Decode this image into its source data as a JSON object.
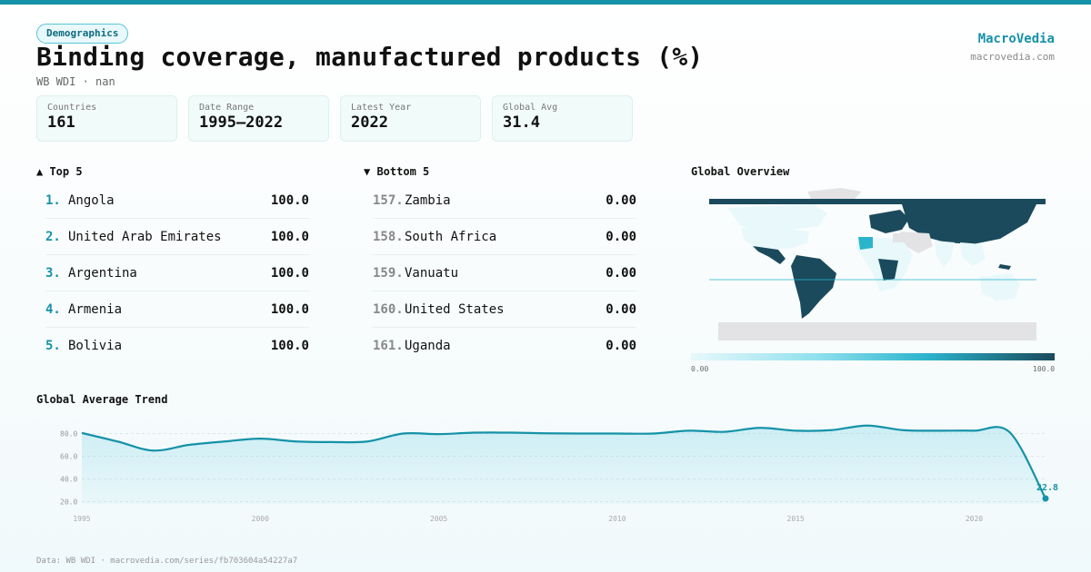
{
  "category_tag": "Demographics",
  "title": "Binding coverage, manufactured products (%)",
  "subtitle": "WB WDI · nan",
  "brand": {
    "name": "MacroVedia",
    "url": "macrovedia.com"
  },
  "stats": [
    {
      "label": "Countries",
      "value": "161"
    },
    {
      "label": "Date Range",
      "value": "1995–2022"
    },
    {
      "label": "Latest Year",
      "value": "2022"
    },
    {
      "label": "Global Avg",
      "value": "31.4"
    }
  ],
  "top5": {
    "title": "▲ Top 5",
    "rows": [
      {
        "rank": "1.",
        "name": "Angola",
        "value": "100.0"
      },
      {
        "rank": "2.",
        "name": "United Arab Emirates",
        "value": "100.0"
      },
      {
        "rank": "3.",
        "name": "Argentina",
        "value": "100.0"
      },
      {
        "rank": "4.",
        "name": "Armenia",
        "value": "100.0"
      },
      {
        "rank": "5.",
        "name": "Bolivia",
        "value": "100.0"
      }
    ]
  },
  "bottom5": {
    "title": "▼ Bottom 5",
    "rows": [
      {
        "rank": "157.",
        "name": "Zambia",
        "value": "0.00"
      },
      {
        "rank": "158.",
        "name": "South Africa",
        "value": "0.00"
      },
      {
        "rank": "159.",
        "name": "Vanuatu",
        "value": "0.00"
      },
      {
        "rank": "160.",
        "name": "United States",
        "value": "0.00"
      },
      {
        "rank": "161.",
        "name": "Uganda",
        "value": "0.00"
      }
    ]
  },
  "map": {
    "title": "Global Overview",
    "legend_min": "0.00",
    "legend_max": "100.0",
    "colors": {
      "high": "#1a4a5c",
      "mid": "#2ab4cc",
      "low": "#e8f8fb",
      "nodata": "#e3e3e6"
    }
  },
  "trend": {
    "title": "Global Average Trend",
    "end_label": "22.8"
  },
  "footer": "Data: WB WDI · macrovedia.com/series/fb703604a54227a7",
  "chart_data": {
    "type": "area",
    "title": "Global Average Trend",
    "x": [
      1995,
      1996,
      1997,
      1998,
      1999,
      2000,
      2001,
      2002,
      2003,
      2004,
      2005,
      2006,
      2007,
      2008,
      2009,
      2010,
      2011,
      2012,
      2013,
      2014,
      2015,
      2016,
      2017,
      2018,
      2019,
      2020,
      2021,
      2022
    ],
    "series": [
      {
        "values": [
          80.5,
          73.0,
          65.0,
          70.0,
          73.0,
          75.5,
          73.0,
          72.5,
          73.0,
          80.0,
          79.5,
          80.8,
          80.8,
          80.2,
          80.0,
          80.0,
          80.0,
          82.5,
          81.5,
          85.0,
          82.5,
          83.0,
          87.0,
          83.0,
          82.5,
          82.5,
          81.0,
          22.8
        ]
      }
    ],
    "yticks": [
      "20.0",
      "40.0",
      "60.0",
      "80.0"
    ],
    "xticks": [
      "1995",
      "2000",
      "2005",
      "2010",
      "2015",
      "2020"
    ],
    "ylim": [
      18,
      90
    ],
    "grid": true,
    "color": "#1592a8"
  }
}
